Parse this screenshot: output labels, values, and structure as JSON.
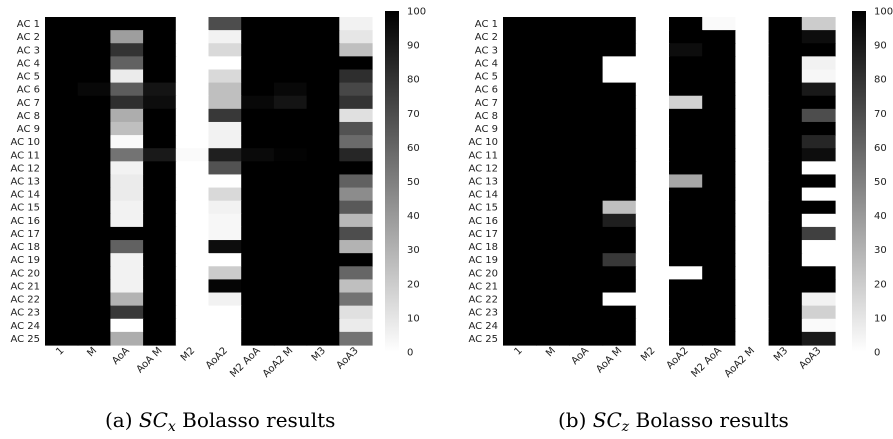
{
  "chart_data": [
    {
      "type": "heatmap",
      "caption": {
        "prefix": "(a) ",
        "sym": "SC",
        "sub": "x",
        "suffix": " Bolasso results"
      },
      "rows": [
        "AC 1",
        "AC 2",
        "AC 3",
        "AC 4",
        "AC 5",
        "AC 6",
        "AC 7",
        "AC 8",
        "AC 9",
        "AC 10",
        "AC 11",
        "AC 12",
        "AC 13",
        "AC 14",
        "AC 15",
        "AC 16",
        "AC 17",
        "AC 18",
        "AC 19",
        "AC 20",
        "AC 21",
        "AC 22",
        "AC 23",
        "AC 24",
        "AC 25"
      ],
      "columns": [
        "1",
        "M",
        "AoA",
        "AoA M",
        "M2",
        "AoA2",
        "M2 AoA",
        "AoA2 M",
        "M3",
        "AoA3"
      ],
      "colorbar": {
        "min": 0,
        "max": 100,
        "ticks": [
          0,
          10,
          20,
          30,
          40,
          50,
          60,
          70,
          80,
          90,
          100
        ]
      },
      "values": [
        [
          100,
          100,
          100,
          100,
          0,
          70,
          100,
          100,
          100,
          5
        ],
        [
          100,
          100,
          38,
          100,
          0,
          5,
          100,
          100,
          100,
          10
        ],
        [
          100,
          100,
          80,
          100,
          0,
          15,
          100,
          100,
          100,
          25
        ],
        [
          100,
          100,
          62,
          100,
          0,
          0,
          100,
          100,
          100,
          100
        ],
        [
          100,
          100,
          8,
          100,
          0,
          15,
          100,
          100,
          100,
          82
        ],
        [
          100,
          97,
          64,
          92,
          0,
          25,
          100,
          97,
          100,
          72
        ],
        [
          100,
          100,
          82,
          95,
          0,
          25,
          97,
          92,
          100,
          80
        ],
        [
          100,
          100,
          32,
          100,
          0,
          78,
          100,
          100,
          100,
          12
        ],
        [
          100,
          100,
          25,
          100,
          0,
          5,
          100,
          100,
          100,
          68
        ],
        [
          100,
          100,
          2,
          100,
          0,
          5,
          100,
          100,
          100,
          58
        ],
        [
          100,
          100,
          55,
          90,
          2,
          88,
          96,
          99,
          100,
          85
        ],
        [
          100,
          100,
          5,
          100,
          0,
          68,
          100,
          100,
          100,
          100
        ],
        [
          100,
          100,
          8,
          100,
          0,
          0,
          100,
          100,
          100,
          62
        ],
        [
          100,
          100,
          8,
          100,
          0,
          15,
          100,
          100,
          100,
          45
        ],
        [
          100,
          100,
          5,
          100,
          0,
          5,
          100,
          100,
          100,
          65
        ],
        [
          100,
          100,
          5,
          100,
          0,
          3,
          100,
          100,
          100,
          28
        ],
        [
          100,
          100,
          100,
          100,
          0,
          3,
          100,
          100,
          100,
          70
        ],
        [
          100,
          100,
          62,
          100,
          0,
          95,
          100,
          100,
          100,
          30
        ],
        [
          100,
          100,
          5,
          100,
          0,
          0,
          100,
          100,
          100,
          100
        ],
        [
          100,
          100,
          5,
          100,
          0,
          20,
          100,
          100,
          100,
          60
        ],
        [
          100,
          100,
          5,
          100,
          0,
          98,
          100,
          100,
          100,
          25
        ],
        [
          100,
          100,
          30,
          100,
          0,
          5,
          100,
          100,
          100,
          55
        ],
        [
          100,
          100,
          78,
          100,
          0,
          0,
          100,
          100,
          100,
          12
        ],
        [
          100,
          100,
          0,
          100,
          0,
          0,
          100,
          100,
          100,
          8
        ],
        [
          100,
          100,
          32,
          100,
          0,
          0,
          100,
          100,
          100,
          55
        ]
      ]
    },
    {
      "type": "heatmap",
      "caption": {
        "prefix": "(b) ",
        "sym": "SC",
        "sub": "z",
        "suffix": " Bolasso results"
      },
      "rows": [
        "AC 1",
        "AC 2",
        "AC 3",
        "AC 4",
        "AC 5",
        "AC 6",
        "AC 7",
        "AC 8",
        "AC 9",
        "AC 10",
        "AC 11",
        "AC 12",
        "AC 13",
        "AC 14",
        "AC 15",
        "AC 16",
        "AC 17",
        "AC 18",
        "AC 19",
        "AC 20",
        "AC 21",
        "AC 22",
        "AC 23",
        "AC 24",
        "AC 25"
      ],
      "columns": [
        "1",
        "M",
        "AoA",
        "AoA M",
        "M2",
        "AoA2",
        "M2 AoA",
        "AoA2 M",
        "M3",
        "AoA3"
      ],
      "colorbar": {
        "min": 0,
        "max": 100,
        "ticks": [
          0,
          10,
          20,
          30,
          40,
          50,
          60,
          70,
          80,
          90,
          100
        ]
      },
      "values": [
        [
          100,
          100,
          100,
          100,
          0,
          100,
          2,
          0,
          100,
          20
        ],
        [
          100,
          100,
          100,
          100,
          0,
          100,
          100,
          0,
          100,
          95
        ],
        [
          100,
          100,
          100,
          100,
          0,
          95,
          100,
          0,
          100,
          100
        ],
        [
          100,
          100,
          100,
          0,
          0,
          100,
          100,
          0,
          100,
          5
        ],
        [
          100,
          100,
          100,
          0,
          0,
          100,
          100,
          0,
          100,
          3
        ],
        [
          100,
          100,
          100,
          100,
          0,
          100,
          100,
          0,
          100,
          90
        ],
        [
          100,
          100,
          100,
          100,
          0,
          18,
          100,
          0,
          100,
          100
        ],
        [
          100,
          100,
          100,
          100,
          0,
          100,
          100,
          0,
          100,
          70
        ],
        [
          100,
          100,
          100,
          100,
          0,
          100,
          100,
          0,
          100,
          100
        ],
        [
          100,
          100,
          100,
          100,
          0,
          100,
          100,
          0,
          100,
          85
        ],
        [
          100,
          100,
          100,
          100,
          0,
          100,
          100,
          0,
          100,
          95
        ],
        [
          100,
          100,
          100,
          100,
          0,
          100,
          100,
          0,
          100,
          0
        ],
        [
          100,
          100,
          100,
          100,
          0,
          35,
          100,
          0,
          100,
          100
        ],
        [
          100,
          100,
          100,
          100,
          0,
          100,
          100,
          0,
          100,
          0
        ],
        [
          100,
          100,
          100,
          25,
          0,
          100,
          100,
          0,
          100,
          100
        ],
        [
          100,
          100,
          100,
          88,
          0,
          100,
          100,
          0,
          100,
          0
        ],
        [
          100,
          100,
          100,
          100,
          0,
          100,
          100,
          0,
          100,
          75
        ],
        [
          100,
          100,
          100,
          100,
          0,
          100,
          100,
          0,
          100,
          0
        ],
        [
          100,
          100,
          100,
          78,
          0,
          100,
          100,
          0,
          100,
          0
        ],
        [
          100,
          100,
          100,
          100,
          0,
          0,
          100,
          0,
          100,
          100
        ],
        [
          100,
          100,
          100,
          100,
          0,
          100,
          100,
          0,
          100,
          100
        ],
        [
          100,
          100,
          100,
          0,
          0,
          100,
          100,
          0,
          100,
          5
        ],
        [
          100,
          100,
          100,
          100,
          0,
          100,
          100,
          0,
          100,
          18
        ],
        [
          100,
          100,
          100,
          100,
          0,
          100,
          100,
          0,
          100,
          2
        ],
        [
          100,
          100,
          100,
          100,
          0,
          100,
          100,
          0,
          100,
          90
        ]
      ]
    }
  ]
}
